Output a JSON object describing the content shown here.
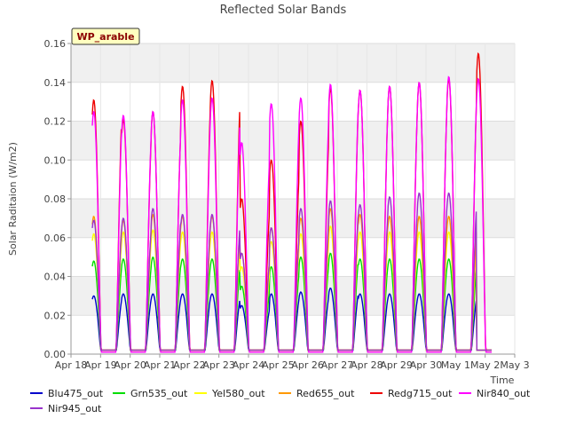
{
  "chart_data": {
    "type": "line",
    "title": "Reflected Solar Bands",
    "xlabel": "Time",
    "ylabel": "Solar Raditaion (W/m2)",
    "site_badge": "WP_arable",
    "ylim": [
      0,
      0.16
    ],
    "yticks": [
      "0.00",
      "0.02",
      "0.04",
      "0.06",
      "0.08",
      "0.10",
      "0.12",
      "0.14",
      "0.16"
    ],
    "xticks": [
      "Apr 18",
      "Apr 19",
      "Apr 20",
      "Apr 21",
      "Apr 22",
      "Apr 23",
      "Apr 24",
      "Apr 25",
      "Apr 26",
      "Apr 27",
      "Apr 28",
      "Apr 29",
      "Apr 30",
      "May 1",
      "May 2",
      "May 3"
    ],
    "x_days_range": [
      "Apr 18",
      "May 3"
    ],
    "grid": true,
    "legend_position": "bottom",
    "days": [
      "Apr 19",
      "Apr 20",
      "Apr 21",
      "Apr 22",
      "Apr 23",
      "Apr 24",
      "Apr 25",
      "Apr 26",
      "Apr 27",
      "Apr 28",
      "Apr 29",
      "Apr 30",
      "May 1",
      "May 2"
    ],
    "series": [
      {
        "name": "Blu475_out",
        "color": "#0000cc",
        "baseline": 0.002,
        "daily_peaks": [
          0.03,
          0.031,
          0.031,
          0.031,
          0.031,
          0.025,
          0.031,
          0.032,
          0.034,
          0.031,
          0.031,
          0.031,
          0.031,
          0.0
        ]
      },
      {
        "name": "Grn535_out",
        "color": "#00dd00",
        "baseline": 0.002,
        "daily_peaks": [
          0.048,
          0.049,
          0.05,
          0.049,
          0.049,
          0.035,
          0.045,
          0.05,
          0.052,
          0.049,
          0.049,
          0.049,
          0.049,
          0.0
        ]
      },
      {
        "name": "Yel580_out",
        "color": "#ffff00",
        "baseline": 0.002,
        "daily_peaks": [
          0.062,
          0.063,
          0.064,
          0.063,
          0.063,
          0.045,
          0.058,
          0.062,
          0.066,
          0.063,
          0.063,
          0.063,
          0.063,
          0.0
        ]
      },
      {
        "name": "Red655_out",
        "color": "#ff9900",
        "baseline": 0.002,
        "daily_peaks": [
          0.071,
          0.069,
          0.072,
          0.071,
          0.071,
          0.052,
          0.065,
          0.07,
          0.075,
          0.072,
          0.071,
          0.071,
          0.071,
          0.0
        ]
      },
      {
        "name": "Redg715_out",
        "color": "#ee0000",
        "baseline": 0.002,
        "daily_peaks": [
          0.131,
          0.121,
          0.125,
          0.138,
          0.141,
          0.08,
          0.1,
          0.12,
          0.137,
          0.136,
          0.138,
          0.14,
          0.142,
          0.155
        ]
      },
      {
        "name": "Nir840_out",
        "color": "#ff00ff",
        "baseline": 0.001,
        "daily_peaks": [
          0.125,
          0.123,
          0.125,
          0.131,
          0.132,
          0.109,
          0.129,
          0.132,
          0.139,
          0.136,
          0.138,
          0.14,
          0.143,
          0.142
        ]
      },
      {
        "name": "Nir945_out",
        "color": "#9933cc",
        "baseline": 0.002,
        "daily_peaks": [
          0.069,
          0.07,
          0.075,
          0.072,
          0.072,
          0.052,
          0.065,
          0.075,
          0.079,
          0.077,
          0.081,
          0.083,
          0.083,
          0.0
        ]
      }
    ]
  }
}
